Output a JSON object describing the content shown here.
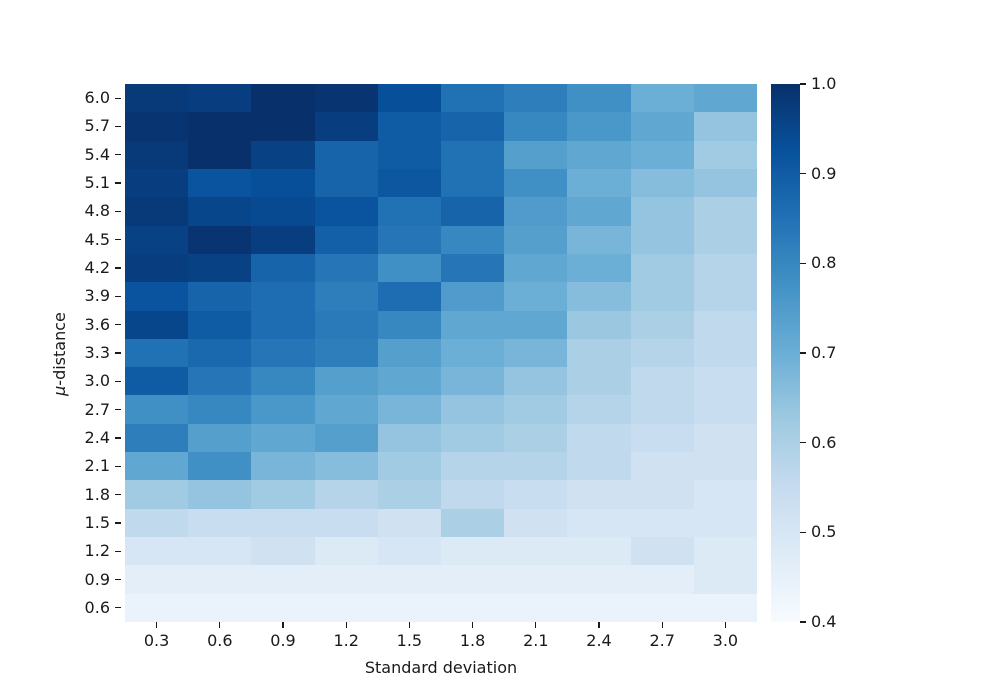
{
  "figure": {
    "background": "#ffffff",
    "text_color": "#1a1a1a"
  },
  "chart_data": {
    "type": "heatmap",
    "title": "",
    "xlabel": "Standard deviation",
    "ylabel": "μ-distance",
    "ylabel_parts": {
      "mu": "μ",
      "rest": "-distance"
    },
    "x_categories": [
      "0.3",
      "0.6",
      "0.9",
      "1.2",
      "1.5",
      "1.8",
      "2.1",
      "2.4",
      "2.7",
      "3.0"
    ],
    "y_categories": [
      "6.0",
      "5.7",
      "5.4",
      "5.1",
      "4.8",
      "4.5",
      "4.2",
      "3.9",
      "3.6",
      "3.3",
      "3.0",
      "2.7",
      "2.4",
      "2.1",
      "1.8",
      "1.5",
      "1.2",
      "0.9",
      "0.6"
    ],
    "values": [
      [
        0.98,
        0.97,
        1.0,
        0.99,
        0.93,
        0.85,
        0.82,
        0.78,
        0.7,
        0.72
      ],
      [
        0.99,
        1.0,
        1.0,
        0.97,
        0.9,
        0.88,
        0.8,
        0.76,
        0.72,
        0.64
      ],
      [
        0.98,
        1.0,
        0.96,
        0.88,
        0.9,
        0.85,
        0.74,
        0.72,
        0.7,
        0.62
      ],
      [
        0.97,
        0.92,
        0.93,
        0.88,
        0.91,
        0.85,
        0.78,
        0.7,
        0.66,
        0.64
      ],
      [
        0.98,
        0.95,
        0.94,
        0.92,
        0.85,
        0.88,
        0.75,
        0.72,
        0.64,
        0.6
      ],
      [
        0.96,
        0.99,
        0.97,
        0.89,
        0.84,
        0.8,
        0.74,
        0.68,
        0.64,
        0.6
      ],
      [
        0.97,
        0.96,
        0.88,
        0.84,
        0.78,
        0.84,
        0.72,
        0.7,
        0.62,
        0.58
      ],
      [
        0.92,
        0.88,
        0.86,
        0.82,
        0.86,
        0.75,
        0.7,
        0.66,
        0.62,
        0.58
      ],
      [
        0.95,
        0.9,
        0.86,
        0.83,
        0.8,
        0.72,
        0.72,
        0.63,
        0.6,
        0.56
      ],
      [
        0.85,
        0.87,
        0.84,
        0.82,
        0.74,
        0.7,
        0.68,
        0.6,
        0.58,
        0.56
      ],
      [
        0.9,
        0.84,
        0.8,
        0.74,
        0.72,
        0.68,
        0.64,
        0.6,
        0.56,
        0.54
      ],
      [
        0.78,
        0.8,
        0.76,
        0.72,
        0.68,
        0.64,
        0.62,
        0.58,
        0.56,
        0.54
      ],
      [
        0.82,
        0.74,
        0.72,
        0.74,
        0.64,
        0.62,
        0.6,
        0.56,
        0.54,
        0.52
      ],
      [
        0.72,
        0.78,
        0.68,
        0.66,
        0.62,
        0.58,
        0.58,
        0.56,
        0.52,
        0.52
      ],
      [
        0.62,
        0.64,
        0.62,
        0.58,
        0.6,
        0.56,
        0.54,
        0.52,
        0.52,
        0.5
      ],
      [
        0.56,
        0.54,
        0.54,
        0.54,
        0.52,
        0.6,
        0.52,
        0.5,
        0.5,
        0.5
      ],
      [
        0.5,
        0.5,
        0.52,
        0.48,
        0.5,
        0.48,
        0.48,
        0.48,
        0.52,
        0.48
      ],
      [
        0.46,
        0.46,
        0.46,
        0.46,
        0.46,
        0.46,
        0.46,
        0.46,
        0.46,
        0.48
      ],
      [
        0.44,
        0.44,
        0.44,
        0.44,
        0.44,
        0.44,
        0.44,
        0.44,
        0.44,
        0.44
      ]
    ],
    "vmin": 0.4,
    "vmax": 1.0,
    "colormap": "Blues",
    "colormap_stops": [
      [
        0.0,
        "#f7fbff"
      ],
      [
        0.125,
        "#deebf7"
      ],
      [
        0.25,
        "#c6dbef"
      ],
      [
        0.375,
        "#9ecae1"
      ],
      [
        0.5,
        "#6baed6"
      ],
      [
        0.625,
        "#4292c6"
      ],
      [
        0.75,
        "#2171b5"
      ],
      [
        0.875,
        "#08519c"
      ],
      [
        1.0,
        "#08306b"
      ]
    ],
    "colorbar_ticks": [
      "1.0",
      "0.9",
      "0.8",
      "0.7",
      "0.6",
      "0.5",
      "0.4"
    ],
    "legend_position": "right-colorbar",
    "grid": false
  }
}
